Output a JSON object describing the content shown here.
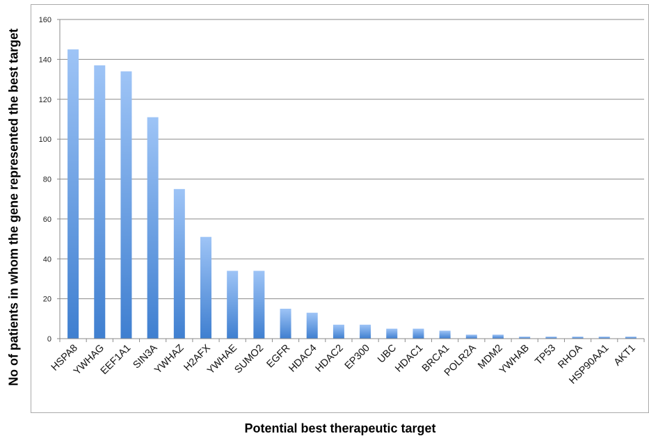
{
  "chart_data": {
    "type": "bar",
    "title": "",
    "xlabel": "Potential best therapeutic target",
    "ylabel": "No of patients in whom the gene represented the best target",
    "ylim": [
      0,
      160
    ],
    "yticks": [
      "0",
      "20",
      "40",
      "60",
      "80",
      "100",
      "120",
      "140",
      "160"
    ],
    "grid": true,
    "bar_color_top": "#9ec4f6",
    "bar_color_bottom": "#3f7fd0",
    "categories": [
      "HSPA8",
      "YWHAG",
      "EEF1A1",
      "SIN3A",
      "YWHAZ",
      "H2AFX",
      "YWHAE",
      "SUMO2",
      "EGFR",
      "HDAC4",
      "HDAC2",
      "EP300",
      "UBC",
      "HDAC1",
      "BRCA1",
      "POLR2A",
      "MDM2",
      "YWHAB",
      "TP53",
      "RHOA",
      "HSP90AA1",
      "AKT1"
    ],
    "values": [
      145,
      137,
      134,
      111,
      75,
      51,
      34,
      34,
      15,
      13,
      7,
      7,
      5,
      5,
      4,
      2,
      2,
      1,
      1,
      1,
      1,
      1
    ]
  }
}
